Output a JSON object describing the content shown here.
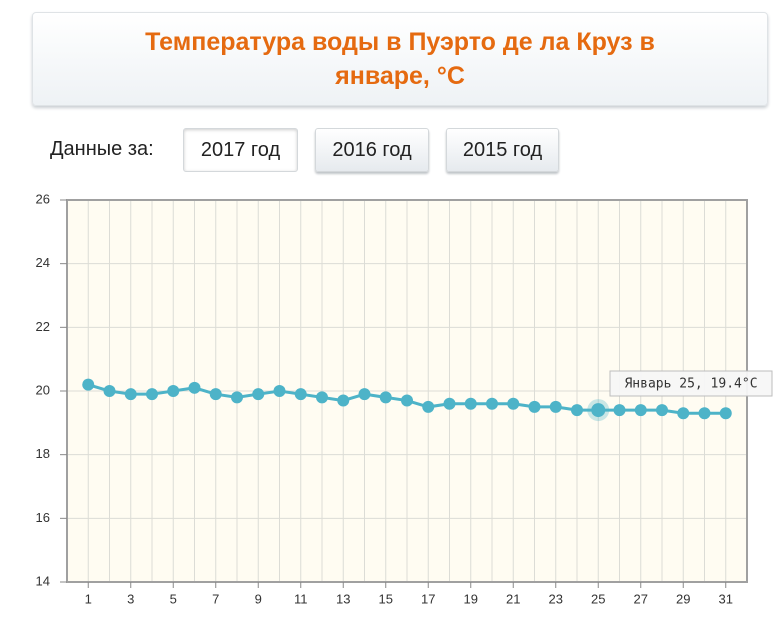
{
  "header": {
    "title": "Температура воды в Пуэрто де ла Круз в январе, °C"
  },
  "filter": {
    "label": "Данные за:",
    "buttons": [
      "2017 год",
      "2016 год",
      "2015 год"
    ]
  },
  "chart_data": {
    "type": "line",
    "x": [
      1,
      2,
      3,
      4,
      5,
      6,
      7,
      8,
      9,
      10,
      11,
      12,
      13,
      14,
      15,
      16,
      17,
      18,
      19,
      20,
      21,
      22,
      23,
      24,
      25,
      26,
      27,
      28,
      29,
      30,
      31
    ],
    "values": [
      20.2,
      20.0,
      19.9,
      19.9,
      20.0,
      20.1,
      19.9,
      19.8,
      19.9,
      20.0,
      19.9,
      19.8,
      19.7,
      19.9,
      19.8,
      19.7,
      19.5,
      19.6,
      19.6,
      19.6,
      19.6,
      19.5,
      19.5,
      19.4,
      19.4,
      19.4,
      19.4,
      19.4,
      19.3,
      19.3,
      19.3
    ],
    "color": "#4db3c8",
    "xlim": [
      0,
      32
    ],
    "xticks": [
      1,
      3,
      5,
      7,
      9,
      11,
      13,
      15,
      17,
      19,
      21,
      23,
      25,
      27,
      29,
      31
    ],
    "ylim": [
      14,
      26
    ],
    "yticks": [
      14,
      16,
      18,
      20,
      22,
      24,
      26
    ],
    "grid": true,
    "tooltip": {
      "index": 24,
      "text": "Январь 25, 19.4°C"
    }
  }
}
